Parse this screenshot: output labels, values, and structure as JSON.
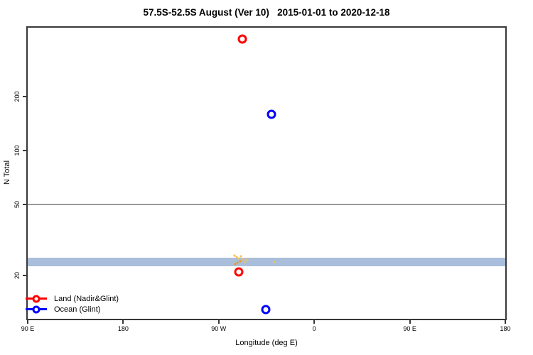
{
  "title": "57.5S-52.5S August (Ver 10)   2015-01-01 to 2020-12-18",
  "chart_data": {
    "type": "scatter",
    "title": "57.5S-52.5S August (Ver 10)   2015-01-01 to 2020-12-18",
    "xlabel": "Longitude (deg E)",
    "ylabel": "N Total",
    "x_axis": {
      "range": [
        90,
        540
      ],
      "tick_positions": [
        90,
        180,
        270,
        360,
        450,
        540
      ],
      "tick_labels": [
        "90 E",
        "180",
        "90 W",
        "0",
        "90 E",
        "180"
      ]
    },
    "y_axis": {
      "scale": "log",
      "range": [
        11.5,
        490
      ],
      "ticks": [
        20,
        50,
        100,
        200
      ],
      "tick_labels": [
        "20",
        "50",
        "100",
        "200"
      ]
    },
    "grid": "off",
    "legend_position": "bottom-left",
    "series": [
      {
        "name": "Land (Nadir&Glint)",
        "color": "#ff0000",
        "marker": "open-circle",
        "points": [
          {
            "lon": 292,
            "n": 420
          },
          {
            "lon": 289,
            "n": 21
          }
        ]
      },
      {
        "name": "Ocean (Glint)",
        "color": "#0000ff",
        "marker": "open-circle",
        "points": [
          {
            "lon": 320,
            "n": 160
          },
          {
            "lon": 314,
            "n": 13
          }
        ]
      }
    ],
    "reference_band": {
      "color": "#a9bedb",
      "n_min": 22.5,
      "n_max": 25.2
    },
    "reference_line": {
      "n": 50,
      "color": "#9a9a9a"
    },
    "minor_points": {
      "default_color": "#efc35e",
      "dark_color": "#e69b22",
      "points": [
        {
          "lon": 284.9,
          "n": 25.9
        },
        {
          "lon": 286.9,
          "n": 25.5
        },
        {
          "lon": 288.9,
          "n": 25.0
        },
        {
          "lon": 290.9,
          "n": 25.7
        },
        {
          "lon": 292.9,
          "n": 24.8
        },
        {
          "lon": 290.2,
          "n": 24.1,
          "shade": "dark"
        },
        {
          "lon": 287.6,
          "n": 23.7,
          "shade": "dark"
        },
        {
          "lon": 285.6,
          "n": 23.2,
          "shade": "dark"
        },
        {
          "lon": 294.9,
          "n": 23.9
        },
        {
          "lon": 296.9,
          "n": 24.6
        },
        {
          "lon": 322.3,
          "n": 23.9
        }
      ]
    }
  }
}
